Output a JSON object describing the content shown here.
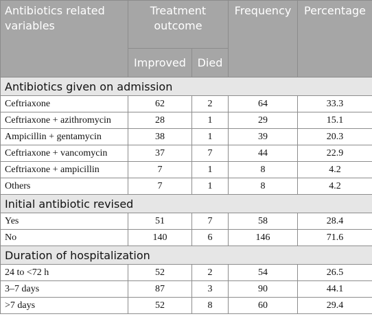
{
  "header": {
    "col1": "Antibiotics related variables",
    "outcome_group": "Treatment outcome",
    "improved": "Improved",
    "died": "Died",
    "frequency": "Frequency",
    "percentage": "Percentage"
  },
  "sections": [
    {
      "title": "Antibiotics given on admission",
      "rows": [
        {
          "label": "Ceftriaxone",
          "improved": "62",
          "died": "2",
          "frequency": "64",
          "percentage": "33.3"
        },
        {
          "label": "Ceftriaxone + azithromycin",
          "improved": "28",
          "died": "1",
          "frequency": "29",
          "percentage": "15.1"
        },
        {
          "label": "Ampicillin + gentamycin",
          "improved": "38",
          "died": "1",
          "frequency": "39",
          "percentage": "20.3"
        },
        {
          "label": "Ceftriaxone + vancomycin",
          "improved": "37",
          "died": "7",
          "frequency": "44",
          "percentage": "22.9"
        },
        {
          "label": "Ceftriaxone + ampicillin",
          "improved": "7",
          "died": "1",
          "frequency": "8",
          "percentage": "4.2"
        },
        {
          "label": "Others",
          "improved": "7",
          "died": "1",
          "frequency": "8",
          "percentage": "4.2"
        }
      ]
    },
    {
      "title": "Initial antibiotic revised",
      "rows": [
        {
          "label": "Yes",
          "improved": "51",
          "died": "7",
          "frequency": "58",
          "percentage": "28.4"
        },
        {
          "label": "No",
          "improved": "140",
          "died": "6",
          "frequency": "146",
          "percentage": "71.6"
        }
      ]
    },
    {
      "title": "Duration of hospitalization",
      "rows": [
        {
          "label": "24 to <72 h",
          "improved": "52",
          "died": "2",
          "frequency": "54",
          "percentage": "26.5"
        },
        {
          "label": "3–7 days",
          "improved": "87",
          "died": "3",
          "frequency": "90",
          "percentage": "44.1"
        },
        {
          "label": ">7 days",
          "improved": "52",
          "died": "8",
          "frequency": "60",
          "percentage": "29.4"
        }
      ]
    }
  ]
}
